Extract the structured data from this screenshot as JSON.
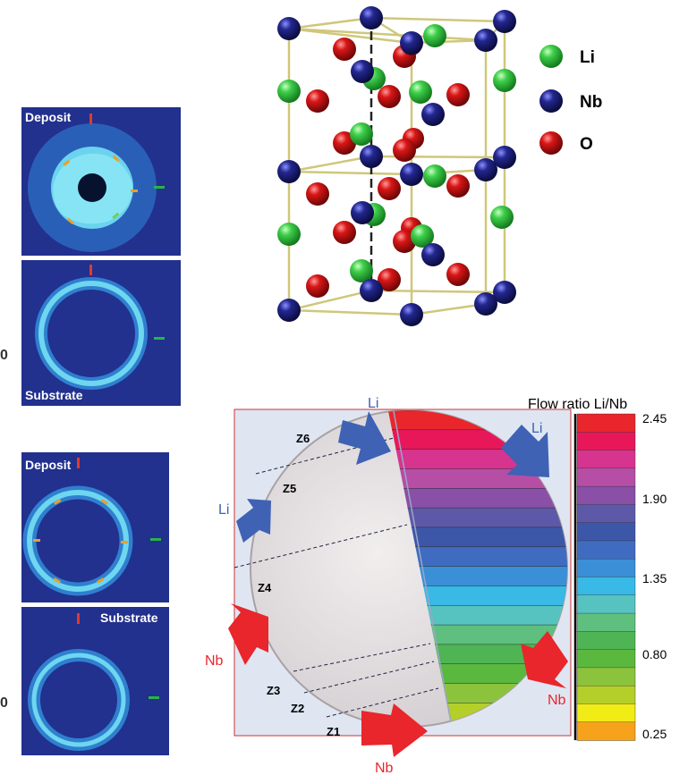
{
  "pole_figures": {
    "top": {
      "deposit_label": "Deposit",
      "substrate_label": "Substrate",
      "edge_digit": "0"
    },
    "bottom": {
      "deposit_label": "Deposit",
      "substrate_label": "Substrate",
      "edge_digit": "0"
    }
  },
  "crystal": {
    "legend": [
      {
        "symbol": "Li",
        "color": "#2fb53a"
      },
      {
        "symbol": "Nb",
        "color": "#1c1f7a"
      },
      {
        "symbol": "O",
        "color": "#d21414"
      }
    ]
  },
  "wafer": {
    "title": "Flow ratio Li/Nb",
    "zones": [
      "Z6",
      "Z5",
      "Z4",
      "Z3",
      "Z2",
      "Z1"
    ],
    "arrows": [
      {
        "label": "Li",
        "color": "#3f62b4"
      },
      {
        "label": "Li",
        "color": "#3f62b4"
      },
      {
        "label": "Li",
        "color": "#3f62b4"
      },
      {
        "label": "Nb",
        "color": "#e8262b"
      },
      {
        "label": "Nb",
        "color": "#e8262b"
      },
      {
        "label": "Nb",
        "color": "#e8262b"
      }
    ],
    "colorbar": {
      "tick_labels": [
        "2.45",
        "1.90",
        "1.35",
        "0.80",
        "0.25"
      ],
      "colors": [
        "#e8262b",
        "#e8175a",
        "#d6348f",
        "#b64ea6",
        "#8a4fa6",
        "#5e58a8",
        "#3d57a8",
        "#3f6cc0",
        "#3a8fd6",
        "#38b9e6",
        "#56c3c0",
        "#5fbf7e",
        "#4fb454",
        "#5bb83f",
        "#8bc43c",
        "#b5cf2a",
        "#f2ec16",
        "#f7a21b"
      ]
    }
  }
}
